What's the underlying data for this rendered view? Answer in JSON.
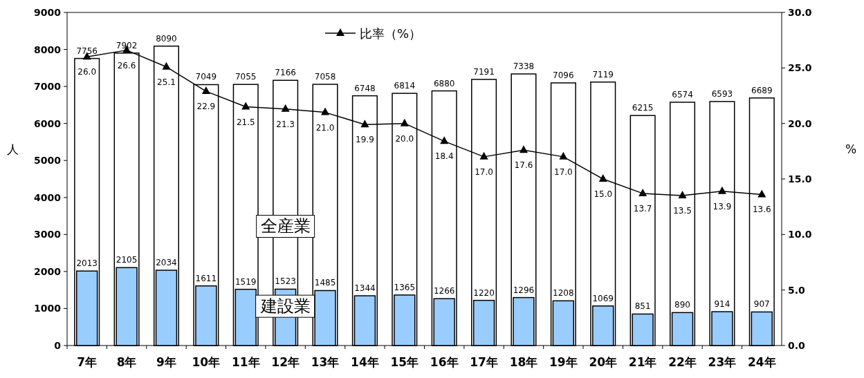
{
  "chart_data": {
    "type": "bar",
    "categories": [
      "7年",
      "8年",
      "9年",
      "10年",
      "11年",
      "12年",
      "13年",
      "14年",
      "15年",
      "16年",
      "17年",
      "18年",
      "19年",
      "20年",
      "21年",
      "22年",
      "23年",
      "24年"
    ],
    "ylabel": "人",
    "y2label": "%",
    "ylim": [
      0,
      9000
    ],
    "yticks": [
      0,
      1000,
      2000,
      3000,
      4000,
      5000,
      6000,
      7000,
      8000,
      9000
    ],
    "y2lim": [
      0,
      30
    ],
    "y2ticks": [
      {
        "value": 0,
        "label": "0.0"
      },
      {
        "value": 5,
        "label": "5.0"
      },
      {
        "value": 10,
        "label": "10.0"
      },
      {
        "value": 15,
        "label": "15.0"
      },
      {
        "value": 20,
        "label": "20.0"
      },
      {
        "value": 25,
        "label": "25.0"
      },
      {
        "value": 30,
        "label": "30.0"
      }
    ],
    "series": [
      {
        "name": "全産業",
        "color": "#ffffff",
        "values": [
          7756,
          7902,
          8090,
          7049,
          7055,
          7166,
          7058,
          6748,
          6814,
          6880,
          7191,
          7338,
          7096,
          7119,
          6215,
          6574,
          6593,
          6689
        ]
      },
      {
        "name": "建設業",
        "color": "#99ccff",
        "values": [
          2013,
          2105,
          2034,
          1611,
          1519,
          1523,
          1485,
          1344,
          1365,
          1266,
          1220,
          1296,
          1208,
          1069,
          851,
          890,
          914,
          907
        ]
      },
      {
        "name": "比率（%）",
        "type": "line",
        "axis": "y2",
        "color": "#000000",
        "values": [
          26.0,
          26.6,
          25.1,
          22.9,
          21.5,
          21.3,
          21.0,
          19.9,
          20.0,
          18.4,
          17.0,
          17.6,
          17.0,
          15.0,
          13.7,
          13.5,
          13.9,
          13.6
        ],
        "value_labels": [
          "26.0",
          "26.6",
          "25.1",
          "22.9",
          "21.5",
          "21.3",
          "21.0",
          "19.9",
          "20.0",
          "18.4",
          "17.0",
          "17.6",
          "17.0",
          "15.0",
          "13.7",
          "13.5",
          "13.9",
          "13.6"
        ]
      }
    ],
    "data_labels": true,
    "legend": "top",
    "marker": "triangle",
    "grid": false
  }
}
